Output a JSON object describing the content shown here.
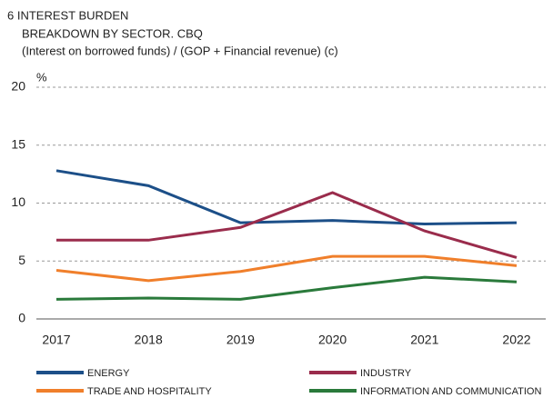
{
  "chart_data": {
    "type": "line",
    "title": "6 INTEREST BURDEN",
    "subtitles": [
      "BREAKDOWN BY SECTOR. CBQ",
      "(Interest on borrowed funds) / (GOP + Financial revenue) (c)"
    ],
    "y_label": "%",
    "categories": [
      "2017",
      "2018",
      "2019",
      "2020",
      "2021",
      "2022"
    ],
    "series": [
      {
        "name": "ENERGY",
        "color": "#1c4f88",
        "values": [
          12.8,
          11.5,
          8.3,
          8.5,
          8.2,
          8.3
        ]
      },
      {
        "name": "INDUSTRY",
        "color": "#9a2c4c",
        "values": [
          6.8,
          6.8,
          7.9,
          10.9,
          7.6,
          5.3
        ]
      },
      {
        "name": "TRADE AND HOSPITALITY",
        "color": "#f07f2b",
        "values": [
          4.2,
          3.3,
          4.1,
          5.4,
          5.4,
          4.6
        ]
      },
      {
        "name": "INFORMATION AND COMMUNICATION",
        "color": "#2a7a3b",
        "values": [
          1.7,
          1.8,
          1.7,
          2.7,
          3.6,
          3.2
        ]
      }
    ],
    "ylim": [
      0,
      20
    ],
    "yticks": [
      0,
      5,
      10,
      15,
      20
    ],
    "grid": true
  }
}
